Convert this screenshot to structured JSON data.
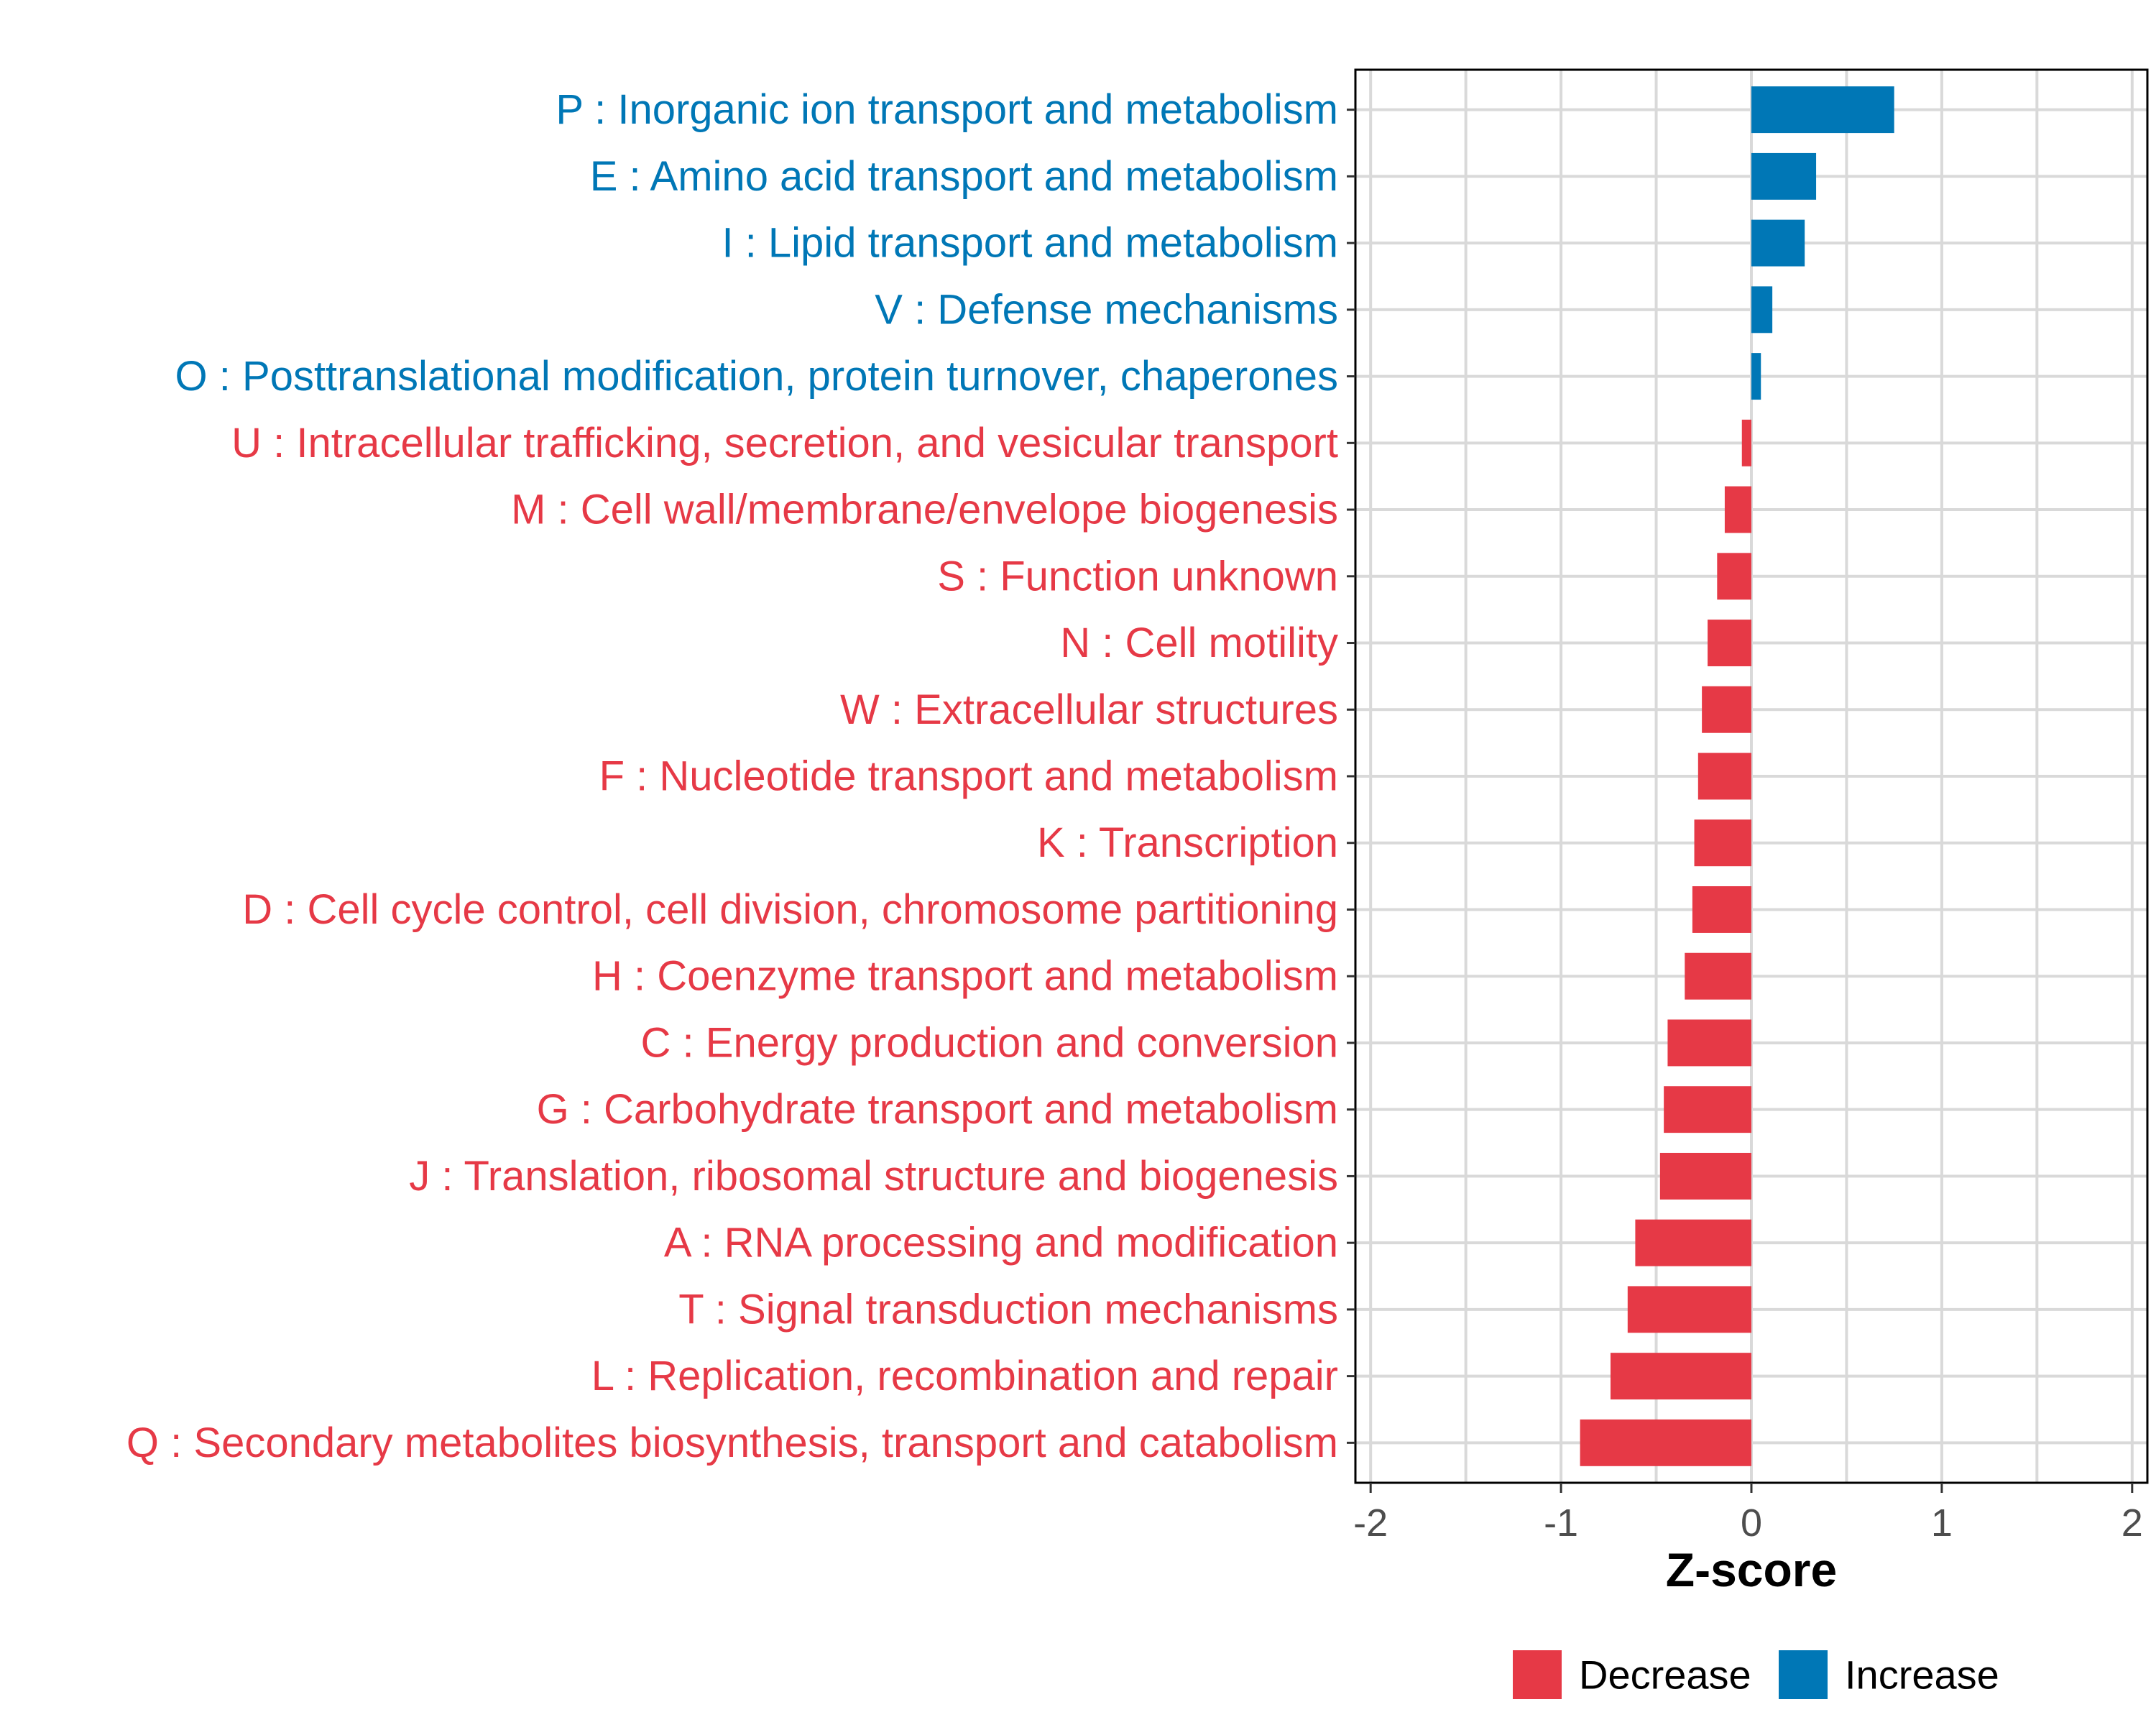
{
  "chart_data": {
    "type": "bar",
    "orientation": "horizontal",
    "title": "",
    "xlabel": "Z-score",
    "ylabel": "",
    "xlim": [
      -2.08,
      2.08
    ],
    "xticks": [
      -2,
      -1,
      0,
      1,
      2
    ],
    "xtick_labels": [
      "-2",
      "-1",
      "0",
      "1",
      "2"
    ],
    "grid": true,
    "colors": {
      "Decrease": "#E63946",
      "Increase": "#0077B6"
    },
    "legend": {
      "position": "bottom",
      "entries": [
        {
          "label": "Decrease",
          "color": "#E63946"
        },
        {
          "label": "Increase",
          "color": "#0077B6"
        }
      ]
    },
    "categories": [
      "P : Inorganic ion transport and metabolism",
      "E : Amino acid transport and metabolism",
      "I : Lipid transport and metabolism",
      "V : Defense mechanisms",
      "O : Posttranslational modification, protein turnover, chaperones",
      "U : Intracellular trafficking, secretion, and vesicular transport",
      "M : Cell wall/membrane/envelope biogenesis",
      "S : Function unknown",
      "N : Cell motility",
      "W : Extracellular structures",
      "F : Nucleotide transport and metabolism",
      "K : Transcription",
      "D : Cell cycle control, cell division, chromosome partitioning",
      "H : Coenzyme transport and metabolism",
      "C : Energy production and conversion",
      "G : Carbohydrate transport and metabolism",
      "J : Translation, ribosomal structure and biogenesis",
      "A : RNA processing and modification",
      "T : Signal transduction mechanisms",
      "L : Replication, recombination and repair",
      "Q : Secondary metabolites biosynthesis, transport and catabolism"
    ],
    "values": [
      0.75,
      0.34,
      0.28,
      0.11,
      0.05,
      -0.05,
      -0.14,
      -0.18,
      -0.23,
      -0.26,
      -0.28,
      -0.3,
      -0.31,
      -0.35,
      -0.44,
      -0.46,
      -0.48,
      -0.61,
      -0.65,
      -0.74,
      -0.9
    ],
    "direction": [
      "Increase",
      "Increase",
      "Increase",
      "Increase",
      "Increase",
      "Decrease",
      "Decrease",
      "Decrease",
      "Decrease",
      "Decrease",
      "Decrease",
      "Decrease",
      "Decrease",
      "Decrease",
      "Decrease",
      "Decrease",
      "Decrease",
      "Decrease",
      "Decrease",
      "Decrease",
      "Decrease"
    ]
  }
}
